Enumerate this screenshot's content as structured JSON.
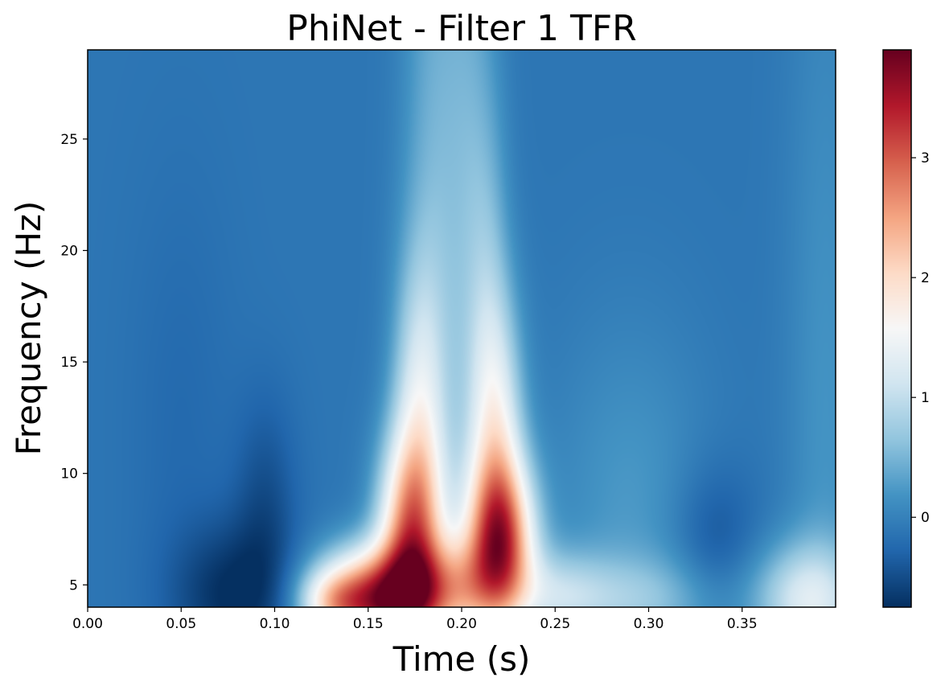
{
  "chart_data": {
    "type": "heatmap",
    "title": "PhiNet - Filter 1 TFR",
    "xlabel": "Time (s)",
    "ylabel": "Frequency (Hz)",
    "xlim": [
      0.0,
      0.4
    ],
    "ylim": [
      4,
      29
    ],
    "x_ticks": [
      0.0,
      0.05,
      0.1,
      0.15,
      0.2,
      0.25,
      0.3,
      0.35
    ],
    "x_tick_labels": [
      "0.00",
      "0.05",
      "0.10",
      "0.15",
      "0.20",
      "0.25",
      "0.30",
      "0.35"
    ],
    "y_ticks": [
      5,
      10,
      15,
      20,
      25
    ],
    "y_tick_labels": [
      "5",
      "10",
      "15",
      "20",
      "25"
    ],
    "colormap": "RdBu_r",
    "colorbar": {
      "vmin": -0.75,
      "vmax": 3.9,
      "ticks": [
        0,
        1,
        2,
        3
      ],
      "tick_labels": [
        "0",
        "1",
        "2",
        "3"
      ],
      "placement": "right"
    },
    "features": [
      {
        "x": 0.075,
        "y": 4.5,
        "value": -0.7
      },
      {
        "x": 0.095,
        "y": 9.0,
        "value": -0.3
      },
      {
        "x": 0.155,
        "y": 4.5,
        "value": 3.85
      },
      {
        "x": 0.175,
        "y": 8.0,
        "value": 2.6
      },
      {
        "x": 0.22,
        "y": 6.5,
        "value": 3.3
      },
      {
        "x": 0.22,
        "y": 10.5,
        "value": 2.0
      },
      {
        "x": 0.2,
        "y": 5.0,
        "value": 1.7
      },
      {
        "x": 0.335,
        "y": 7.0,
        "value": -0.4
      },
      {
        "x": 0.38,
        "y": 4.5,
        "value": 1.1
      }
    ]
  }
}
